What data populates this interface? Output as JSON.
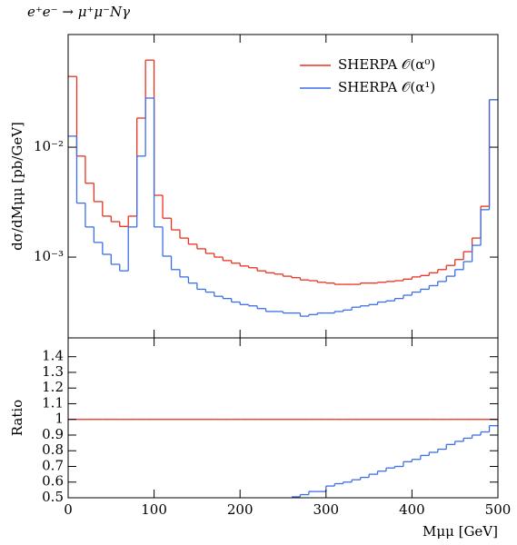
{
  "chart_data": [
    {
      "type": "histogram",
      "title": "e⁺e⁻ → μ⁺μ⁻Nγ",
      "ylabel": "dσ/dMμμ [pb/GeV]",
      "bins": [
        0,
        10,
        20,
        30,
        40,
        50,
        60,
        70,
        80,
        90,
        100,
        110,
        120,
        130,
        140,
        150,
        160,
        170,
        180,
        190,
        200,
        210,
        220,
        230,
        240,
        250,
        260,
        270,
        280,
        290,
        300,
        310,
        320,
        330,
        340,
        350,
        360,
        370,
        380,
        390,
        400,
        410,
        420,
        430,
        440,
        450,
        460,
        470,
        480,
        490,
        500
      ],
      "xlim": [
        0,
        500
      ],
      "xticks": [
        0,
        100,
        200,
        300,
        400,
        500
      ],
      "ylim": [
        0.000184,
        0.106
      ],
      "log_y": true,
      "yticks": [
        {
          "value": 0.001,
          "label": "10⁻³"
        },
        {
          "value": 0.01,
          "label": "10⁻²"
        }
      ],
      "legend": "upper right",
      "series": [
        {
          "name": "SHERPA 𝒪(α⁰)",
          "color": "#e8321e",
          "values": [
            0.044,
            0.0083,
            0.0047,
            0.0032,
            0.00236,
            0.0021,
            0.0019,
            0.00236,
            0.0184,
            0.062,
            0.00365,
            0.00226,
            0.00177,
            0.00149,
            0.00131,
            0.00119,
            0.00108,
            0.001,
            0.00093,
            0.00088,
            0.00083,
            0.0008,
            0.00075,
            0.00072,
            0.0007,
            0.00067,
            0.00065,
            0.00062,
            0.00061,
            0.00059,
            0.00058,
            0.000565,
            0.000565,
            0.000565,
            0.00058,
            0.00058,
            0.00059,
            0.0006,
            0.00061,
            0.00063,
            0.00066,
            0.00068,
            0.00072,
            0.00077,
            0.00084,
            0.00095,
            0.00112,
            0.00149,
            0.0029,
            0.027
          ]
        },
        {
          "name": "SHERPA 𝒪(α¹)",
          "color": "#3c6ee6",
          "values": [
            0.0126,
            0.0031,
            0.00188,
            0.00136,
            0.00106,
            0.00086,
            0.00075,
            0.00188,
            0.0083,
            0.028,
            0.00188,
            0.00102,
            0.00077,
            0.00066,
            0.00058,
            0.00051,
            0.00048,
            0.00044,
            0.00042,
            0.00039,
            0.00037,
            0.00036,
            0.00034,
            0.00032,
            0.00032,
            0.00031,
            0.00031,
            0.00029,
            0.0003,
            0.00031,
            0.00031,
            0.00032,
            0.00033,
            0.00035,
            0.00036,
            0.00037,
            0.00039,
            0.0004,
            0.00042,
            0.00045,
            0.00048,
            0.00051,
            0.00055,
            0.0006,
            0.00067,
            0.00077,
            0.00091,
            0.00128,
            0.0027,
            0.027
          ]
        }
      ]
    },
    {
      "type": "histogram",
      "ylabel": "Ratio",
      "xlabel": "Mμμ [GeV]",
      "bins": [
        0,
        10,
        20,
        30,
        40,
        50,
        60,
        70,
        80,
        90,
        100,
        110,
        120,
        130,
        140,
        150,
        160,
        170,
        180,
        190,
        200,
        210,
        220,
        230,
        240,
        250,
        260,
        270,
        280,
        290,
        300,
        310,
        320,
        330,
        340,
        350,
        360,
        370,
        380,
        390,
        400,
        410,
        420,
        430,
        440,
        450,
        460,
        470,
        480,
        490,
        500
      ],
      "xlim": [
        0,
        500
      ],
      "xticks": [
        0,
        100,
        200,
        300,
        400,
        500
      ],
      "ylim": [
        0.5,
        1.52
      ],
      "yticks": [
        0.5,
        0.6,
        0.7,
        0.8,
        0.9,
        1,
        1.1,
        1.2,
        1.3,
        1.4
      ],
      "series": [
        {
          "name": "SHERPA 𝒪(α⁰)",
          "color": "#e8321e",
          "values": [
            1,
            1,
            1,
            1,
            1,
            1,
            1,
            1,
            1,
            1,
            1,
            1,
            1,
            1,
            1,
            1,
            1,
            1,
            1,
            1,
            1,
            1,
            1,
            1,
            1,
            1,
            1,
            1,
            1,
            1,
            1,
            1,
            1,
            1,
            1,
            1,
            1,
            1,
            1,
            1,
            1,
            1,
            1,
            1,
            1,
            1,
            1,
            1,
            1,
            1
          ]
        },
        {
          "name": "SHERPA 𝒪(α¹)",
          "color": "#3c6ee6",
          "values": [
            null,
            null,
            null,
            null,
            null,
            null,
            null,
            null,
            null,
            null,
            null,
            null,
            null,
            null,
            null,
            null,
            null,
            null,
            null,
            null,
            null,
            null,
            null,
            null,
            null,
            null,
            0.506,
            0.52,
            0.54,
            0.54,
            0.575,
            0.59,
            0.6,
            0.615,
            0.63,
            0.65,
            0.67,
            0.69,
            0.7,
            0.73,
            0.745,
            0.77,
            0.79,
            0.81,
            0.84,
            0.86,
            0.88,
            0.9,
            0.92,
            0.96
          ]
        }
      ]
    }
  ]
}
